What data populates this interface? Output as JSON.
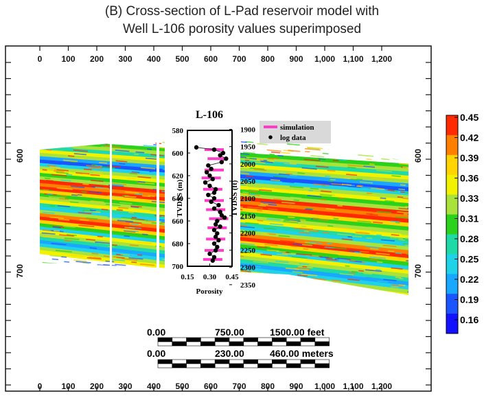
{
  "title_line1": "(B) Cross-section of L-Pad reservoir model with",
  "title_line2": "Well L-106 porosity values superimposed",
  "frame_x_ticks": [
    "0",
    "100",
    "200",
    "300",
    "400",
    "500",
    "600",
    "700",
    "800",
    "900",
    "1,000",
    "1,100",
    "1,200"
  ],
  "frame_y_ticks": [
    "600",
    "700"
  ],
  "colorbar": {
    "labels": [
      "0.45",
      "0.42",
      "0.39",
      "0.36",
      "0.33",
      "0.31",
      "0.28",
      "0.25",
      "0.22",
      "0.19",
      "0.16"
    ],
    "colors": [
      "#ff2a00",
      "#ff7f00",
      "#ffd400",
      "#f2f200",
      "#a8e23a",
      "#2bd11a",
      "#1fd9a6",
      "#20d2e8",
      "#19a7ff",
      "#1a55ff",
      "#1212ff"
    ]
  },
  "scale_bars": {
    "feet": [
      "0.00",
      "750.00",
      "1500.00 feet"
    ],
    "meters": [
      "0.00",
      "230.00",
      "460.00 meters"
    ]
  },
  "well": {
    "name": "L-106",
    "left_axis_ticks": [
      "580",
      "600",
      "620",
      "640",
      "660",
      "680",
      "700"
    ],
    "left_axis_label": "TVDSS (m)",
    "right_axis_ticks": [
      "1900",
      "1950",
      "2000",
      "2050",
      "2100",
      "2150",
      "2200",
      "2250",
      "2300",
      "2350"
    ],
    "right_axis_label": "TVDSS (ft)",
    "x_ticks": [
      "0.15",
      "0.30",
      "0.45"
    ],
    "x_label": "Porosity",
    "legend": [
      "simulation",
      "log data"
    ]
  },
  "chart_data": {
    "type": "scatter",
    "title": "L-106",
    "xlabel": "Porosity",
    "ylabel": "TVDSS (m)",
    "y2label": "TVDSS (ft)",
    "xlim": [
      0.15,
      0.45
    ],
    "ylim": [
      700,
      580
    ],
    "series": [
      {
        "name": "log data",
        "points": [
          [
            0.21,
            595
          ],
          [
            0.33,
            597
          ],
          [
            0.39,
            600
          ],
          [
            0.37,
            602
          ],
          [
            0.41,
            605
          ],
          [
            0.38,
            608
          ],
          [
            0.29,
            611
          ],
          [
            0.31,
            614
          ],
          [
            0.28,
            617
          ],
          [
            0.3,
            620
          ],
          [
            0.32,
            623
          ],
          [
            0.27,
            626
          ],
          [
            0.3,
            629
          ],
          [
            0.34,
            632
          ],
          [
            0.33,
            635
          ],
          [
            0.29,
            637
          ],
          [
            0.33,
            640
          ],
          [
            0.31,
            643
          ],
          [
            0.36,
            646
          ],
          [
            0.33,
            649
          ],
          [
            0.37,
            652
          ],
          [
            0.38,
            655
          ],
          [
            0.4,
            657
          ],
          [
            0.35,
            660
          ],
          [
            0.34,
            663
          ],
          [
            0.37,
            665
          ],
          [
            0.33,
            668
          ],
          [
            0.35,
            671
          ],
          [
            0.34,
            674
          ],
          [
            0.36,
            677
          ],
          [
            0.33,
            680
          ],
          [
            0.35,
            683
          ],
          [
            0.34,
            686
          ],
          [
            0.3,
            689
          ],
          [
            0.33,
            692
          ],
          [
            0.32,
            695
          ]
        ]
      },
      {
        "name": "simulation",
        "points": [
          [
            0.33,
            597
          ],
          [
            0.35,
            605
          ],
          [
            0.33,
            615
          ],
          [
            0.31,
            622
          ],
          [
            0.32,
            632
          ],
          [
            0.33,
            642
          ],
          [
            0.34,
            650
          ],
          [
            0.36,
            658
          ],
          [
            0.35,
            666
          ],
          [
            0.34,
            676
          ],
          [
            0.33,
            686
          ],
          [
            0.32,
            694
          ]
        ]
      }
    ]
  }
}
